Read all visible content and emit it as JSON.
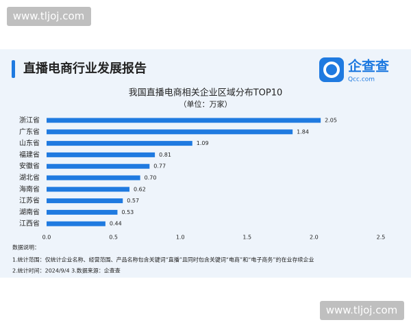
{
  "watermarks": [
    "www.tljoj.com",
    "www.tljoj.com"
  ],
  "header": {
    "title": "直播电商行业发展报告",
    "logo": "企查查",
    "logo_sub": "Qcc.com"
  },
  "chart_data": {
    "type": "bar",
    "orientation": "horizontal",
    "title": "我国直播电商相关企业区域分布TOP10",
    "subtitle": "（单位：万家）",
    "categories": [
      "浙江省",
      "广东省",
      "山东省",
      "福建省",
      "安徽省",
      "湖北省",
      "海南省",
      "江苏省",
      "湖南省",
      "江西省"
    ],
    "values": [
      2.05,
      1.84,
      1.09,
      0.81,
      0.77,
      0.7,
      0.62,
      0.57,
      0.53,
      0.44
    ],
    "value_labels": [
      "2.05",
      "1.84",
      "1.09",
      "0.81",
      "0.77",
      "0.70",
      "0.62",
      "0.57",
      "0.53",
      "0.44"
    ],
    "color": "#1f7ae0",
    "xlim": [
      0,
      2.5
    ],
    "xticks": [
      {
        "value": 0,
        "label": "0.0"
      },
      0.5,
      {
        "value": 1,
        "label": "1.0"
      },
      1.5,
      {
        "value": 2,
        "label": "2.0"
      },
      2.5
    ],
    "grid": false
  },
  "notes": [
    "数据说明：",
    "1.统计范围：仅统计企业名称、经营范围、产品名称包含关键词“直播”且同时包含关键词“电商”和“电子商务”的在业存续企业",
    "2.统计时间：2024/9/4    3.数据来源：企查查"
  ]
}
